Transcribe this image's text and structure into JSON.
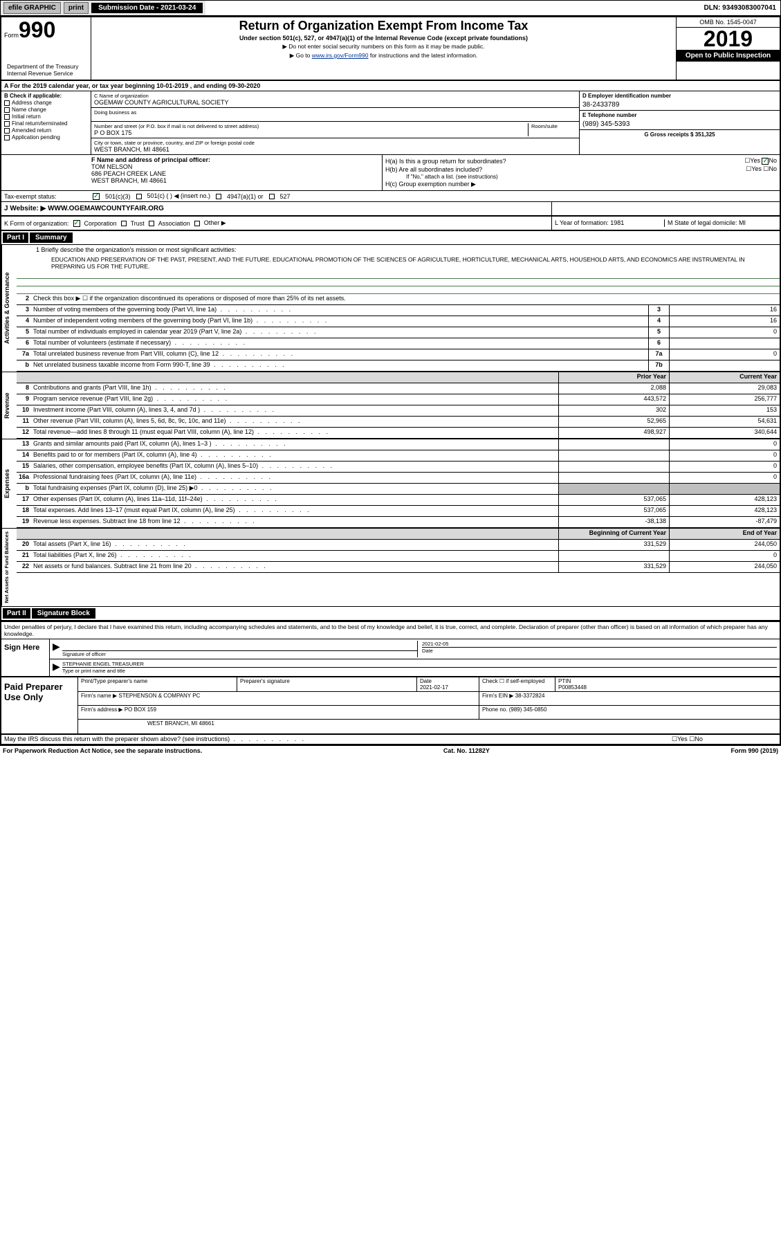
{
  "topbar": {
    "efile": "efile GRAPHIC",
    "print": "print",
    "sub_label": "Submission Date - 2021-03-24",
    "dln": "DLN: 93493083007041"
  },
  "header": {
    "form_label": "Form",
    "form_num": "990",
    "title": "Return of Organization Exempt From Income Tax",
    "subtitle": "Under section 501(c), 527, or 4947(a)(1) of the Internal Revenue Code (except private foundations)",
    "note1": "▶ Do not enter social security numbers on this form as it may be made public.",
    "note2_pre": "▶ Go to ",
    "note2_link": "www.irs.gov/Form990",
    "note2_post": " for instructions and the latest information.",
    "omb": "OMB No. 1545-0047",
    "year": "2019",
    "open_public": "Open to Public Inspection",
    "dept": "Department of the Treasury\nInternal Revenue Service"
  },
  "row_a": "A For the 2019 calendar year, or tax year beginning 10-01-2019   , and ending 09-30-2020",
  "col_b": {
    "label": "B Check if applicable:",
    "items": [
      "Address change",
      "Name change",
      "Initial return",
      "Final return/terminated",
      "Amended return",
      "Application pending"
    ]
  },
  "col_c": {
    "name_lbl": "C Name of organization",
    "name": "OGEMAW COUNTY AGRICULTURAL SOCIETY",
    "dba_lbl": "Doing business as",
    "addr_lbl": "Number and street (or P.O. box if mail is not delivered to street address)",
    "room_lbl": "Room/suite",
    "addr": "P O BOX 175",
    "city_lbl": "City or town, state or province, country, and ZIP or foreign postal code",
    "city": "WEST BRANCH, MI  48661"
  },
  "col_d": {
    "ein_lbl": "D Employer identification number",
    "ein": "38-2433789",
    "phone_lbl": "E Telephone number",
    "phone": "(989) 345-5393",
    "gross_lbl": "G Gross receipts $ 351,325"
  },
  "col_f": {
    "label": "F  Name and address of principal officer:",
    "name": "TOM NELSON",
    "addr1": "686 PEACH CREEK LANE",
    "addr2": "WEST BRANCH, MI  48661"
  },
  "col_h": {
    "ha": "H(a)  Is this a group return for subordinates?",
    "hb": "H(b)  Are all subordinates included?",
    "hb_note": "If \"No,\" attach a list. (see instructions)",
    "hc": "H(c)  Group exemption number ▶",
    "yes": "Yes",
    "no": "No"
  },
  "tax_status": {
    "label": "Tax-exempt status:",
    "opt1": "501(c)(3)",
    "opt2": "501(c) (  ) ◀ (insert no.)",
    "opt3": "4947(a)(1) or",
    "opt4": "527"
  },
  "row_j": {
    "label": "J  Website: ▶",
    "value": "WWW.OGEMAWCOUNTYFAIR.ORG"
  },
  "row_k": {
    "label": "K Form of organization:",
    "opts": [
      "Corporation",
      "Trust",
      "Association",
      "Other ▶"
    ],
    "l_label": "L Year of formation: 1981",
    "m_label": "M State of legal domicile: MI"
  },
  "part1": {
    "label": "Part I",
    "title": "Summary"
  },
  "mission": {
    "label": "1  Briefly describe the organization's mission or most significant activities:",
    "text": "EDUCATION AND PRESERVATION OF THE PAST, PRESENT, AND THE FUTURE. EDUCATIONAL PROMOTION OF THE SCIENCES OF AGRICULTURE, HORTICULTURE, MECHANICAL ARTS, HOUSEHOLD ARTS, AND ECONOMICS ARE INSTRUMENTAL IN PREPARING US FOR THE FUTURE."
  },
  "line2": "Check this box ▶ ☐  if the organization discontinued its operations or disposed of more than 25% of its net assets.",
  "governance": {
    "tab": "Activities & Governance",
    "rows": [
      {
        "n": "3",
        "d": "Number of voting members of the governing body (Part VI, line 1a)",
        "box": "3",
        "v": "16"
      },
      {
        "n": "4",
        "d": "Number of independent voting members of the governing body (Part VI, line 1b)",
        "box": "4",
        "v": "16"
      },
      {
        "n": "5",
        "d": "Total number of individuals employed in calendar year 2019 (Part V, line 2a)",
        "box": "5",
        "v": "0"
      },
      {
        "n": "6",
        "d": "Total number of volunteers (estimate if necessary)",
        "box": "6",
        "v": ""
      },
      {
        "n": "7a",
        "d": "Total unrelated business revenue from Part VIII, column (C), line 12",
        "box": "7a",
        "v": "0"
      },
      {
        "n": "b",
        "d": "Net unrelated business taxable income from Form 990-T, line 39",
        "box": "7b",
        "v": ""
      }
    ]
  },
  "revenue": {
    "tab": "Revenue",
    "hdr_py": "Prior Year",
    "hdr_cy": "Current Year",
    "rows": [
      {
        "n": "8",
        "d": "Contributions and grants (Part VIII, line 1h)",
        "py": "2,088",
        "cy": "29,083"
      },
      {
        "n": "9",
        "d": "Program service revenue (Part VIII, line 2g)",
        "py": "443,572",
        "cy": "256,777"
      },
      {
        "n": "10",
        "d": "Investment income (Part VIII, column (A), lines 3, 4, and 7d )",
        "py": "302",
        "cy": "153"
      },
      {
        "n": "11",
        "d": "Other revenue (Part VIII, column (A), lines 5, 6d, 8c, 9c, 10c, and 11e)",
        "py": "52,965",
        "cy": "54,631"
      },
      {
        "n": "12",
        "d": "Total revenue—add lines 8 through 11 (must equal Part VIII, column (A), line 12)",
        "py": "498,927",
        "cy": "340,644"
      }
    ]
  },
  "expenses": {
    "tab": "Expenses",
    "rows": [
      {
        "n": "13",
        "d": "Grants and similar amounts paid (Part IX, column (A), lines 1–3 )",
        "py": "",
        "cy": "0"
      },
      {
        "n": "14",
        "d": "Benefits paid to or for members (Part IX, column (A), line 4)",
        "py": "",
        "cy": "0"
      },
      {
        "n": "15",
        "d": "Salaries, other compensation, employee benefits (Part IX, column (A), lines 5–10)",
        "py": "",
        "cy": "0"
      },
      {
        "n": "16a",
        "d": "Professional fundraising fees (Part IX, column (A), line 11e)",
        "py": "",
        "cy": "0"
      },
      {
        "n": "b",
        "d": "Total fundraising expenses (Part IX, column (D), line 25) ▶0",
        "py": "shade",
        "cy": "shade"
      },
      {
        "n": "17",
        "d": "Other expenses (Part IX, column (A), lines 11a–11d, 11f–24e)",
        "py": "537,065",
        "cy": "428,123"
      },
      {
        "n": "18",
        "d": "Total expenses. Add lines 13–17 (must equal Part IX, column (A), line 25)",
        "py": "537,065",
        "cy": "428,123"
      },
      {
        "n": "19",
        "d": "Revenue less expenses. Subtract line 18 from line 12",
        "py": "-38,138",
        "cy": "-87,479"
      }
    ]
  },
  "netassets": {
    "tab": "Net Assets or Fund Balances",
    "hdr_py": "Beginning of Current Year",
    "hdr_cy": "End of Year",
    "rows": [
      {
        "n": "20",
        "d": "Total assets (Part X, line 16)",
        "py": "331,529",
        "cy": "244,050"
      },
      {
        "n": "21",
        "d": "Total liabilities (Part X, line 26)",
        "py": "",
        "cy": "0"
      },
      {
        "n": "22",
        "d": "Net assets or fund balances. Subtract line 21 from line 20",
        "py": "331,529",
        "cy": "244,050"
      }
    ]
  },
  "part2": {
    "label": "Part II",
    "title": "Signature Block"
  },
  "sig": {
    "declare": "Under penalties of perjury, I declare that I have examined this return, including accompanying schedules and statements, and to the best of my knowledge and belief, it is true, correct, and complete. Declaration of preparer (other than officer) is based on all information of which preparer has any knowledge.",
    "sign_here": "Sign Here",
    "sig_officer": "Signature of officer",
    "date_lbl": "Date",
    "date": "2021-02-05",
    "name": "STEPHANIE ENGEL TREASURER",
    "name_lbl": "Type or print name and title"
  },
  "prep": {
    "label": "Paid Preparer Use Only",
    "h1": "Print/Type preparer's name",
    "h2": "Preparer's signature",
    "h3": "Date",
    "h3v": "2021-02-17",
    "h4": "Check ☐ if self-employed",
    "h5": "PTIN",
    "h5v": "P00853448",
    "firm_lbl": "Firm's name    ▶",
    "firm": "STEPHENSON & COMPANY PC",
    "ein_lbl": "Firm's EIN ▶",
    "ein": "38-3372824",
    "addr_lbl": "Firm's address ▶",
    "addr": "PO BOX 159",
    "city": "WEST BRANCH, MI  48661",
    "phone_lbl": "Phone no.",
    "phone": "(989) 345-0850"
  },
  "discuss": "May the IRS discuss this return with the preparer shown above? (see instructions)",
  "footer": {
    "l": "For Paperwork Reduction Act Notice, see the separate instructions.",
    "m": "Cat. No. 11282Y",
    "r": "Form 990 (2019)"
  },
  "colors": {
    "link": "#003399",
    "green_line": "#4a7a4a"
  }
}
